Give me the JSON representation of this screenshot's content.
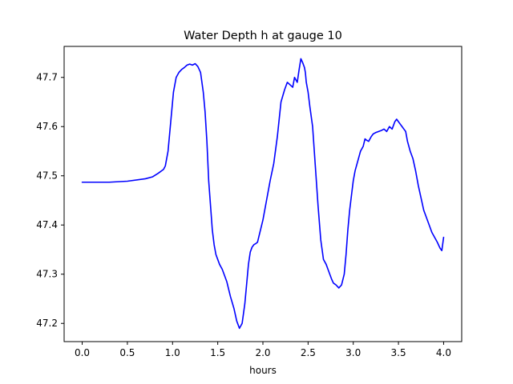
{
  "chart_data": {
    "type": "line",
    "title": "Water Depth h at gauge 10",
    "xlabel": "hours",
    "ylabel": "",
    "xlim": [
      -0.2,
      4.2
    ],
    "ylim": [
      47.163,
      47.763
    ],
    "xticks": [
      0.0,
      0.5,
      1.0,
      1.5,
      2.0,
      2.5,
      3.0,
      3.5,
      4.0
    ],
    "xtick_labels": [
      "0.0",
      "0.5",
      "1.0",
      "1.5",
      "2.0",
      "2.5",
      "3.0",
      "3.5",
      "4.0"
    ],
    "yticks": [
      47.2,
      47.3,
      47.4,
      47.5,
      47.6,
      47.7
    ],
    "ytick_labels": [
      "47.2",
      "47.3",
      "47.4",
      "47.5",
      "47.6",
      "47.7"
    ],
    "grid": false,
    "legend": "none",
    "series": [
      {
        "color": "#0000ff",
        "x": [
          0.0,
          0.1,
          0.3,
          0.5,
          0.7,
          0.78,
          0.84,
          0.9,
          0.92,
          0.95,
          0.98,
          1.01,
          1.04,
          1.07,
          1.1,
          1.13,
          1.16,
          1.19,
          1.22,
          1.25,
          1.28,
          1.31,
          1.34,
          1.36,
          1.38,
          1.4,
          1.42,
          1.44,
          1.46,
          1.48,
          1.5,
          1.52,
          1.55,
          1.6,
          1.64,
          1.68,
          1.71,
          1.74,
          1.77,
          1.8,
          1.82,
          1.84,
          1.86,
          1.88,
          1.9,
          1.92,
          1.94,
          1.96,
          1.98,
          2.0,
          2.04,
          2.08,
          2.12,
          2.16,
          2.2,
          2.24,
          2.27,
          2.3,
          2.33,
          2.35,
          2.38,
          2.4,
          2.42,
          2.44,
          2.45,
          2.46,
          2.47,
          2.48,
          2.5,
          2.52,
          2.55,
          2.58,
          2.61,
          2.64,
          2.67,
          2.7,
          2.72,
          2.74,
          2.76,
          2.78,
          2.81,
          2.84,
          2.87,
          2.9,
          2.92,
          2.94,
          2.96,
          2.98,
          3.0,
          3.02,
          3.05,
          3.08,
          3.11,
          3.13,
          3.15,
          3.17,
          3.2,
          3.22,
          3.25,
          3.28,
          3.31,
          3.34,
          3.37,
          3.4,
          3.43,
          3.46,
          3.48,
          3.5,
          3.52,
          3.54,
          3.56,
          3.58,
          3.6,
          3.63,
          3.66,
          3.69,
          3.72,
          3.75,
          3.78,
          3.81,
          3.84,
          3.87,
          3.9,
          3.93,
          3.96,
          3.98,
          4.0
        ],
        "y": [
          47.487,
          47.487,
          47.487,
          47.489,
          47.494,
          47.498,
          47.505,
          47.513,
          47.52,
          47.55,
          47.61,
          47.67,
          47.7,
          47.71,
          47.716,
          47.72,
          47.725,
          47.727,
          47.725,
          47.728,
          47.722,
          47.71,
          47.67,
          47.63,
          47.57,
          47.49,
          47.44,
          47.39,
          47.36,
          47.34,
          47.33,
          47.32,
          47.31,
          47.285,
          47.255,
          47.23,
          47.205,
          47.19,
          47.2,
          47.24,
          47.28,
          47.32,
          47.345,
          47.355,
          47.36,
          47.362,
          47.365,
          47.38,
          47.395,
          47.41,
          47.45,
          47.49,
          47.525,
          47.58,
          47.65,
          47.675,
          47.69,
          47.685,
          47.68,
          47.7,
          47.69,
          47.715,
          47.738,
          47.73,
          47.725,
          47.72,
          47.71,
          47.69,
          47.67,
          47.64,
          47.6,
          47.52,
          47.44,
          47.37,
          47.33,
          47.32,
          47.31,
          47.3,
          47.29,
          47.282,
          47.278,
          47.272,
          47.278,
          47.3,
          47.34,
          47.39,
          47.43,
          47.46,
          47.49,
          47.51,
          47.53,
          47.55,
          47.56,
          47.575,
          47.572,
          47.57,
          47.58,
          47.585,
          47.588,
          47.59,
          47.592,
          47.595,
          47.59,
          47.6,
          47.595,
          47.61,
          47.615,
          47.61,
          47.605,
          47.6,
          47.595,
          47.59,
          47.57,
          47.55,
          47.535,
          47.51,
          47.48,
          47.455,
          47.43,
          47.415,
          47.4,
          47.385,
          47.375,
          47.365,
          47.353,
          47.348,
          47.375
        ]
      }
    ]
  }
}
